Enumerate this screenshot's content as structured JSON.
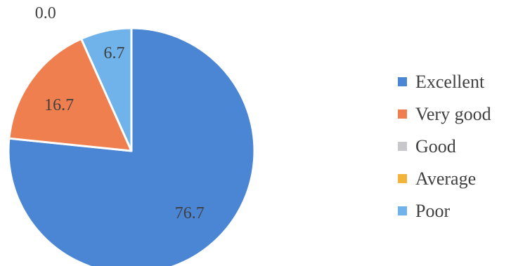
{
  "chart_data": {
    "type": "pie",
    "categories": [
      "Excellent",
      "Very good",
      "Good",
      "Average",
      "Poor"
    ],
    "values": [
      76.7,
      16.7,
      0.0,
      0.0,
      6.7
    ],
    "data_labels": [
      "76.7",
      "16.7",
      "0.0",
      "",
      "6.7"
    ],
    "colors": [
      "#4a86d4",
      "#ef7f4e",
      "#c8c8cc",
      "#f2b43a",
      "#6fb3ea"
    ],
    "start_angle": "top (12 o'clock)",
    "direction": "clockwise",
    "legend_position": "right"
  }
}
